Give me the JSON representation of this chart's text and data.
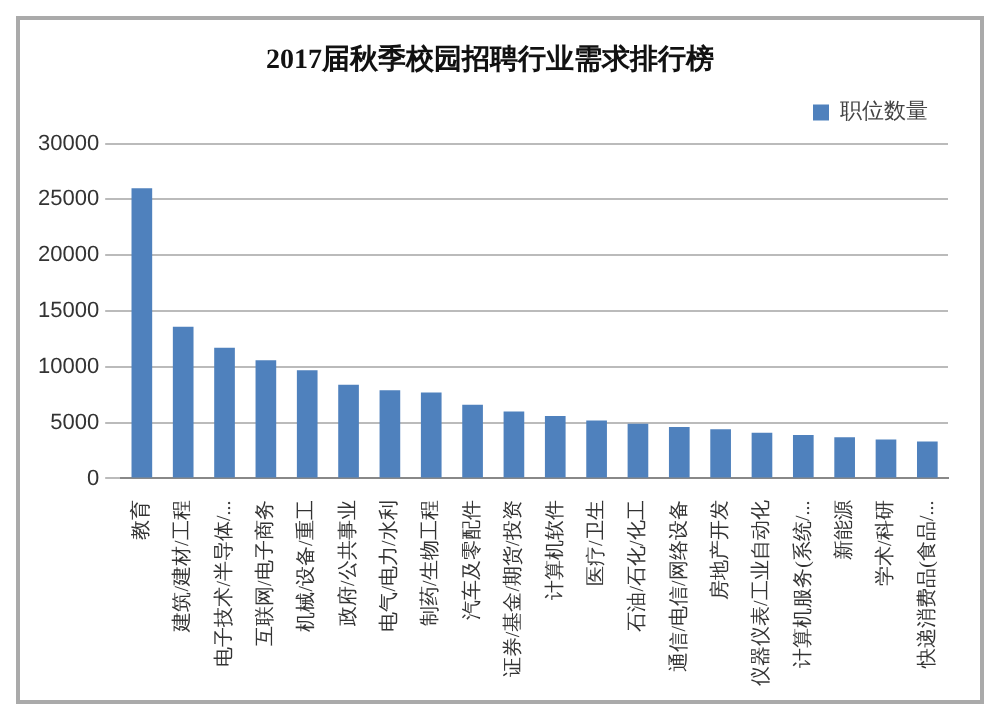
{
  "chart_data": {
    "type": "bar",
    "title": "2017届秋季校园招聘行业需求排行榜",
    "categories": [
      "教育",
      "建筑/建材/工程",
      "电子技术/半导体/...",
      "互联网/电子商务",
      "机械/设备/重工",
      "政府/公共事业",
      "电气/电力/水利",
      "制药/生物工程",
      "汽车及零配件",
      "证券/基金/期货/投资",
      "计算机软件",
      "医疗/卫生",
      "石油/石化/化工",
      "通信/电信/网络设备",
      "房地产开发",
      "仪器仪表/工业自动化",
      "计算机服务(系统/...",
      "新能源",
      "学术/科研",
      "快递消费品(食品/..."
    ],
    "series": [
      {
        "name": "职位数量",
        "color": "#4f81bd",
        "values": [
          26000,
          13600,
          11700,
          10600,
          9700,
          8400,
          7900,
          7700,
          6600,
          6000,
          5600,
          5200,
          4900,
          4600,
          4400,
          4100,
          3900,
          3700,
          3500,
          3300
        ]
      }
    ],
    "ylim": [
      0,
      30000
    ],
    "yticks": [
      0,
      5000,
      10000,
      15000,
      20000,
      25000,
      30000
    ],
    "grid": "y",
    "legend": "top right"
  }
}
